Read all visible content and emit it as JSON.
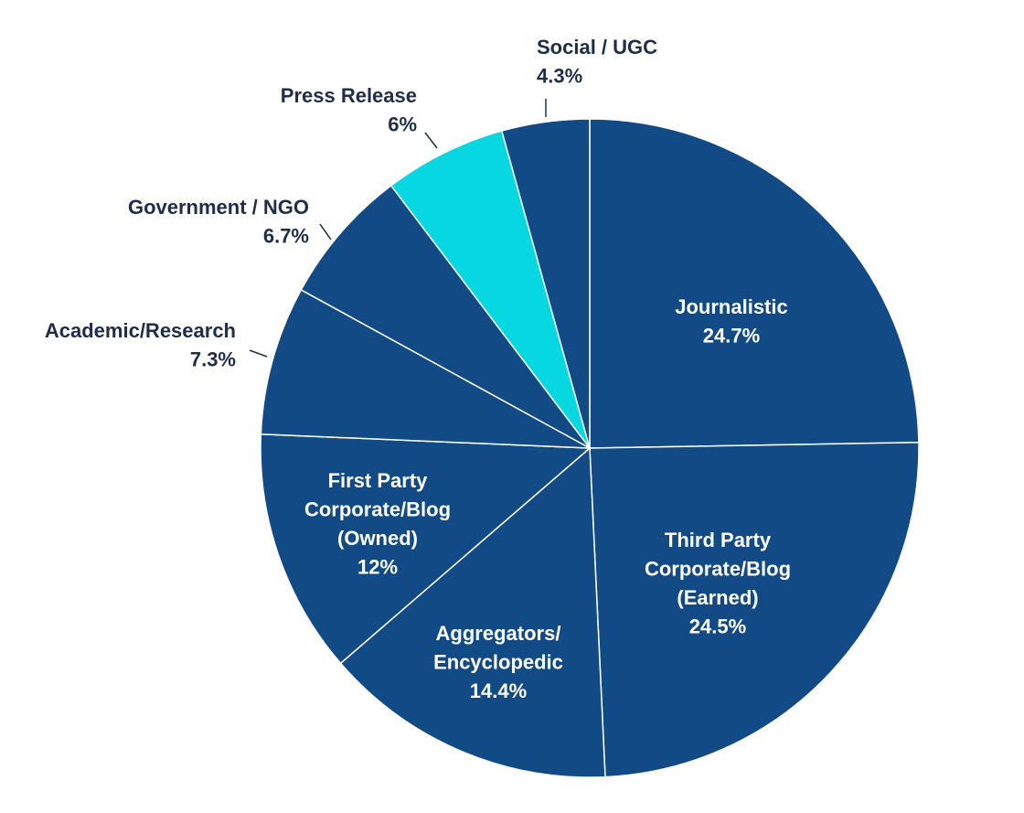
{
  "chart_data": {
    "type": "pie",
    "start": "12 o'clock",
    "direction": "clockwise",
    "slices": [
      {
        "label": [
          "Journalistic"
        ],
        "value": 24.7,
        "value_label": "24.7%",
        "color": "#114a85"
      },
      {
        "label": [
          "Third Party",
          "Corporate/Blog",
          "(Earned)"
        ],
        "value": 24.5,
        "value_label": "24.5%",
        "color": "#114a85"
      },
      {
        "label": [
          "Aggregators/",
          "Encyclopedic"
        ],
        "value": 14.4,
        "value_label": "14.4%",
        "color": "#114a85"
      },
      {
        "label": [
          "First Party",
          "Corporate/Blog",
          "(Owned)"
        ],
        "value": 12,
        "value_label": "12%",
        "color": "#114a85"
      },
      {
        "label": [
          "Academic/Research"
        ],
        "value": 7.3,
        "value_label": "7.3%",
        "color": "#114a85"
      },
      {
        "label": [
          "Government / NGO"
        ],
        "value": 6.7,
        "value_label": "6.7%",
        "color": "#114a85"
      },
      {
        "label": [
          "Press Release"
        ],
        "value": 6,
        "value_label": "6%",
        "color": "#06d7e0"
      },
      {
        "label": [
          "Social / UGC"
        ],
        "value": 4.3,
        "value_label": "4.3%",
        "color": "#114a85"
      }
    ],
    "colors": {
      "inside_text": "#ffffff",
      "outside_text": "#1e2d4a",
      "separator": "#ffffff"
    }
  }
}
